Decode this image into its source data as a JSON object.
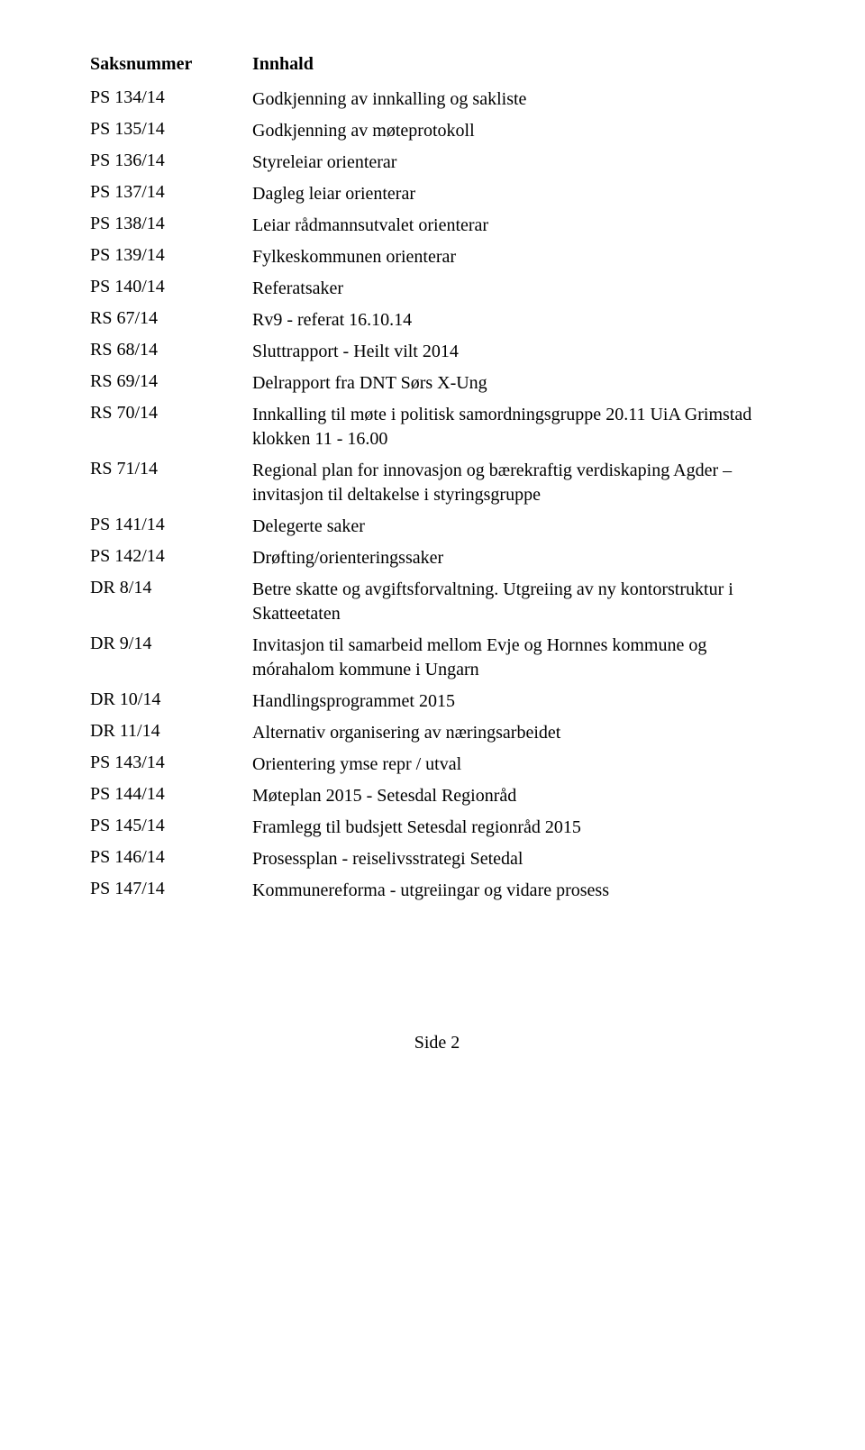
{
  "font": {
    "family": "Times New Roman",
    "size_pt": 15,
    "header_weight": "bold"
  },
  "colors": {
    "text": "#000000",
    "background": "#ffffff"
  },
  "headers": {
    "left": "Saksnummer",
    "right": "Innhald"
  },
  "rows": [
    {
      "num": "PS 134/14",
      "text": "Godkjenning av innkalling og sakliste"
    },
    {
      "num": "PS 135/14",
      "text": "Godkjenning av møteprotokoll"
    },
    {
      "num": "PS 136/14",
      "text": "Styreleiar orienterar"
    },
    {
      "num": "PS 137/14",
      "text": "Dagleg leiar orienterar"
    },
    {
      "num": "PS 138/14",
      "text": "Leiar rådmannsutvalet orienterar"
    },
    {
      "num": "PS 139/14",
      "text": "Fylkeskommunen orienterar"
    },
    {
      "num": "PS 140/14",
      "text": "Referatsaker"
    },
    {
      "num": "RS 67/14",
      "text": "Rv9 - referat 16.10.14"
    },
    {
      "num": "RS 68/14",
      "text": "Sluttrapport - Heilt vilt 2014"
    },
    {
      "num": "RS 69/14",
      "text": "Delrapport fra DNT Sørs X-Ung"
    },
    {
      "num": "RS 70/14",
      "text": "Innkalling til møte i politisk samordningsgruppe 20.11 UiA Grimstad klokken 11 - 16.00"
    },
    {
      "num": "RS 71/14",
      "text": "Regional plan for innovasjon og bærekraftig verdiskaping Agder – invitasjon til deltakelse i styringsgruppe"
    },
    {
      "num": "PS 141/14",
      "text": "Delegerte saker"
    },
    {
      "num": "PS 142/14",
      "text": "Drøfting/orienteringssaker"
    },
    {
      "num": "DR 8/14",
      "text": "Betre skatte og avgiftsforvaltning. Utgreiing av ny kontorstruktur i Skatteetaten"
    },
    {
      "num": "DR 9/14",
      "text": "Invitasjon til samarbeid mellom Evje og Hornnes kommune og mórahalom kommune i Ungarn"
    },
    {
      "num": "DR 10/14",
      "text": "Handlingsprogrammet 2015"
    },
    {
      "num": "DR 11/14",
      "text": "Alternativ organisering av næringsarbeidet"
    },
    {
      "num": "PS 143/14",
      "text": "Orientering ymse repr / utval"
    },
    {
      "num": "PS 144/14",
      "text": "Møteplan 2015 - Setesdal Regionråd"
    },
    {
      "num": "PS 145/14",
      "text": "Framlegg til budsjett Setesdal regionråd 2015"
    },
    {
      "num": "PS 146/14",
      "text": "Prosessplan - reiselivsstrategi Setedal"
    },
    {
      "num": "PS 147/14",
      "text": "Kommunereforma - utgreiingar og vidare prosess"
    }
  ],
  "footer": "Side 2"
}
